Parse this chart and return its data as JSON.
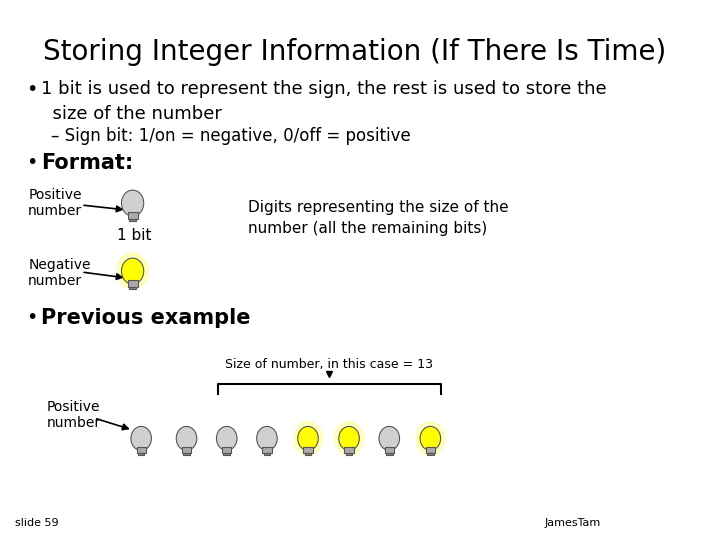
{
  "title": "Storing Integer Information (If There Is Time)",
  "bullet1": "1 bit is used to represent the sign, the rest is used to store the\n  size of the number",
  "sub_bullet1": "– Sign bit: 1/on = negative, 0/off = positive",
  "bullet2_bold": "Format:",
  "positive_label": "Positive\nnumber",
  "negative_label": "Negative\nnumber",
  "one_bit_label": "1 bit",
  "digits_label": "Digits representing the size of the\nnumber (all the remaining bits)",
  "bullet3_bold": "Previous example",
  "size_label": "Size of number, in this case = 13",
  "positive_label2": "Positive\nnumber",
  "slide_num": "slide 59",
  "author": "JamesTam",
  "bg_color": "#ffffff",
  "text_color": "#000000",
  "yellow": "#ffff00",
  "gray_bulb": "#d0d0d0",
  "title_fontsize": 20,
  "body_fontsize": 13,
  "sub_fontsize": 12
}
